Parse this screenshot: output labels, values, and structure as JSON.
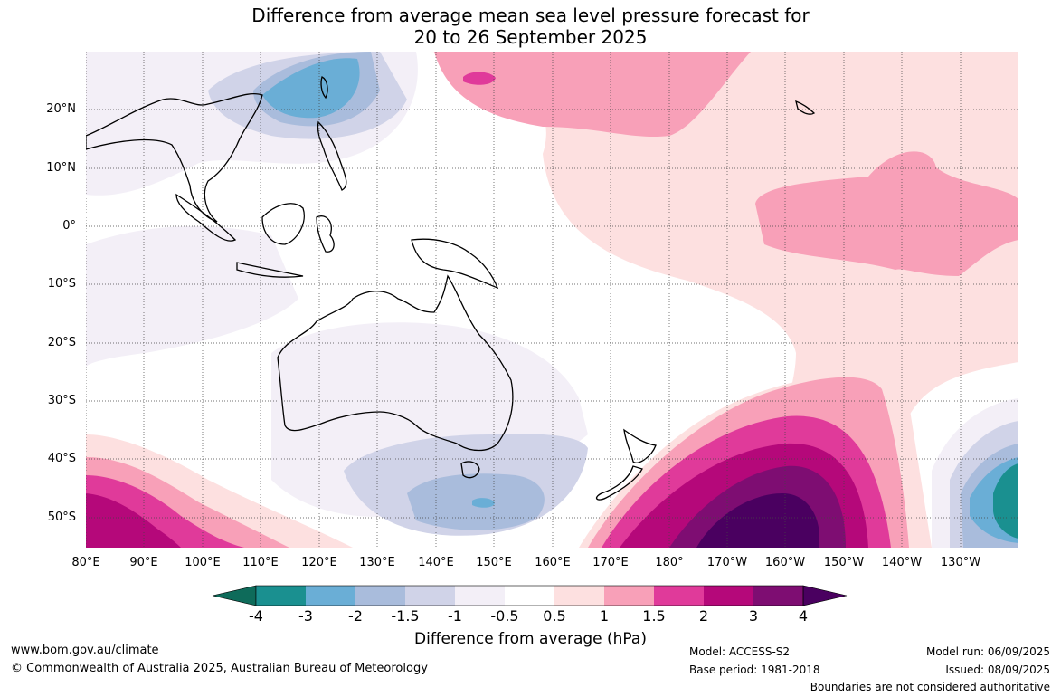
{
  "title": {
    "line1": "Difference from average mean sea level pressure forecast for",
    "line2": "20 to 26 September 2025"
  },
  "map": {
    "lat_labels": [
      "20°N",
      "10°N",
      "0°",
      "10°S",
      "20°S",
      "30°S",
      "40°S",
      "50°S"
    ],
    "lon_labels": [
      "80°E",
      "90°E",
      "100°E",
      "110°E",
      "120°E",
      "130°E",
      "140°E",
      "150°E",
      "160°E",
      "170°E",
      "180°",
      "170°W",
      "160°W",
      "150°W",
      "140°W",
      "130°W"
    ]
  },
  "colorbar": {
    "label": "Difference from average (hPa)",
    "ticks": [
      "-4",
      "-3",
      "-2",
      "-1.5",
      "-1",
      "-0.5",
      "0.5",
      "1",
      "1.5",
      "2",
      "3",
      "4"
    ],
    "colors": [
      "#0e6b5a",
      "#1a9090",
      "#6aaed6",
      "#a9bcdc",
      "#d0d3e8",
      "#f3eff7",
      "#ffffff",
      "#fde0e0",
      "#f8a0b8",
      "#e03a9a",
      "#b5087a",
      "#7e0d72",
      "#4a0060"
    ]
  },
  "footer": {
    "website": "www.bom.gov.au/climate",
    "copyright": "© Commonwealth of Australia 2025, Australian Bureau of Meteorology",
    "model": "Model: ACCESS-S2",
    "base_period": "Base period: 1981-2018",
    "model_run": "Model run: 06/09/2025",
    "issued": "Issued: 08/09/2025",
    "disclaimer": "Boundaries are not considered authoritative"
  }
}
